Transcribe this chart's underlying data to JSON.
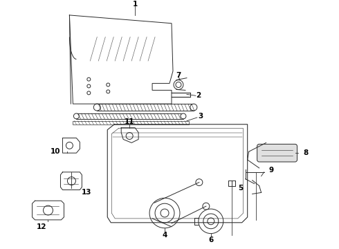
{
  "bg_color": "#ffffff",
  "line_color": "#2a2a2a",
  "lw": 0.7,
  "label_fontsize": 7.5,
  "figsize": [
    4.9,
    3.6
  ],
  "dpi": 100
}
